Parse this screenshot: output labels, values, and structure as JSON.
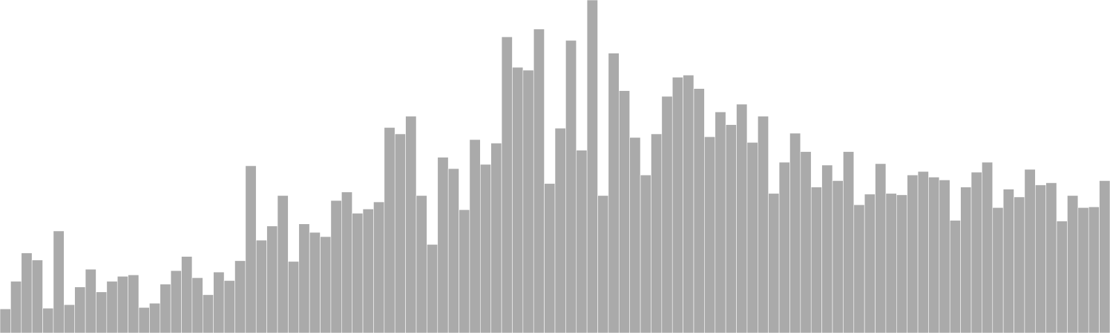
{
  "chart_data": {
    "type": "bar",
    "title": "",
    "xlabel": "",
    "ylabel": "",
    "grid": false,
    "legend": "none",
    "bar_color": "#aaaaaa",
    "bar_edge_color": "#ffffff",
    "ylim": [
      0,
      470
    ],
    "values": [
      34,
      73,
      113,
      103,
      35,
      144,
      40,
      65,
      90,
      58,
      73,
      80,
      82,
      36,
      42,
      69,
      88,
      108,
      78,
      54,
      86,
      74,
      102,
      236,
      131,
      151,
      194,
      101,
      154,
      142,
      136,
      187,
      199,
      169,
      175,
      185,
      290,
      281,
      306,
      194,
      125,
      248,
      232,
      174,
      273,
      238,
      268,
      418,
      375,
      371,
      429,
      211,
      289,
      413,
      258,
      470,
      194,
      395,
      342,
      276,
      223,
      281,
      334,
      361,
      364,
      345,
      277,
      312,
      294,
      323,
      269,
      306,
      197,
      241,
      282,
      256,
      206,
      237,
      215,
      256,
      181,
      196,
      239,
      197,
      195,
      223,
      228,
      220,
      216,
      159,
      206,
      227,
      241,
      177,
      203,
      192,
      231,
      209,
      212,
      158,
      194,
      177,
      178,
      215
    ]
  }
}
